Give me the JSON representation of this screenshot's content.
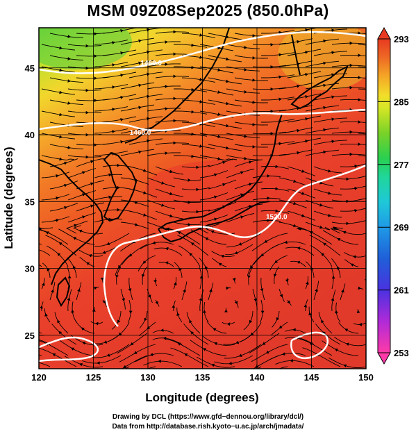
{
  "title": "MSM 09Z08Sep2025 (850.0hPa)",
  "map": {
    "xlabel": "Longitude (degrees)",
    "ylabel": "Latitude  (degrees)",
    "lon_range": [
      120,
      150
    ],
    "lat_range": [
      22.5,
      48
    ],
    "lon_ticks": [
      120,
      125,
      130,
      135,
      140,
      145,
      150
    ],
    "lat_ticks": [
      25,
      30,
      35,
      40,
      45
    ],
    "grid_lat": [
      25,
      30,
      35,
      40,
      45
    ],
    "grid_lon": [
      125,
      130,
      135,
      140,
      145
    ],
    "field": "temperature",
    "streamlines": "wind"
  },
  "contour_labels": [
    {
      "text": "1460.0",
      "lon": 129.3,
      "lat": 40.0
    },
    {
      "text": "1460.0",
      "lon": 130.3,
      "lat": 45.2
    },
    {
      "text": "1520.0",
      "lon": 141.8,
      "lat": 33.7
    }
  ],
  "colorbar": {
    "ticks": [
      293,
      285,
      277,
      269,
      261,
      253
    ],
    "vmin": 253,
    "vmax": 293,
    "colors": [
      "#ff3aa8",
      "#c02cd8",
      "#6a2fe0",
      "#1f3fd8",
      "#1f7ee6",
      "#1fbfe0",
      "#20d6a0",
      "#2ad050",
      "#6ad228",
      "#b8de24",
      "#ecec2a",
      "#f4b826",
      "#f08a24",
      "#ec5a22",
      "#e83a22"
    ]
  },
  "footer": {
    "line1": "Drawing by DCL (https://www.gfd−dennou.org/library/dcl/)",
    "line2": "Data from http://database.rish.kyoto−u.ac.jp/arch/jmadata/"
  }
}
